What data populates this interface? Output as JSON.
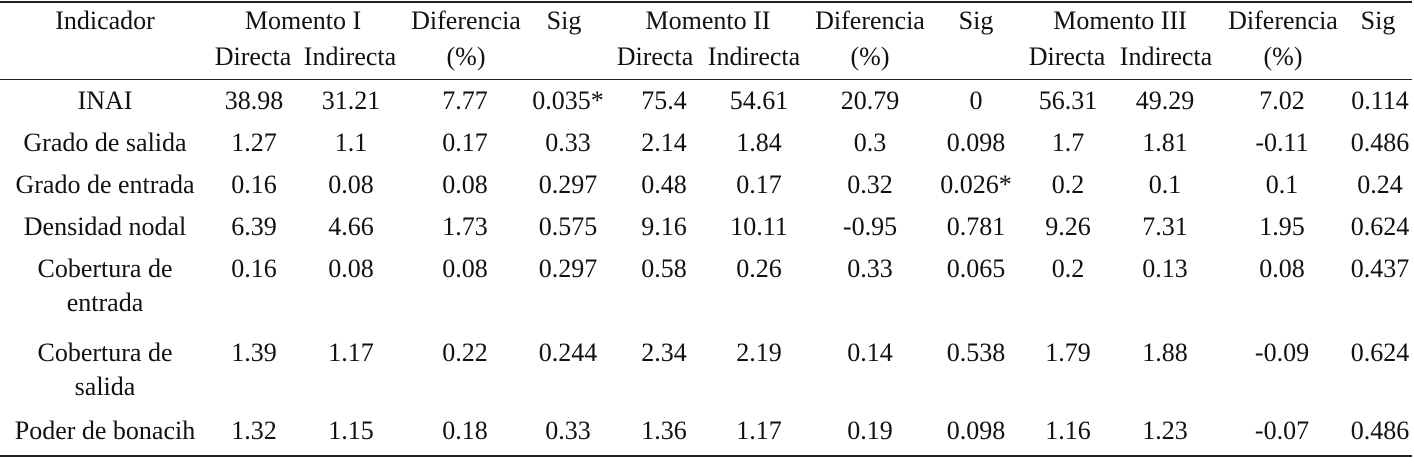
{
  "header": {
    "indicador": "Indicador",
    "groups": [
      {
        "momento": "Momento I",
        "directa": "Directa",
        "indirecta": "Indirecta",
        "diferencia": "Diferencia",
        "pct": "(%)",
        "sig": "Sig"
      },
      {
        "momento": "Momento II",
        "directa": "Directa",
        "indirecta": "Indirecta",
        "diferencia": "Diferencia",
        "pct": "(%)",
        "sig": "Sig"
      },
      {
        "momento": "Momento III",
        "directa": "Directa",
        "indirecta": "Indirecta",
        "diferencia": "Diferencia",
        "pct": "(%)",
        "sig": "Sig"
      }
    ]
  },
  "rows": [
    {
      "label": "INAI",
      "values": [
        "38.98",
        "31.21",
        "7.77",
        "0.035*",
        "75.4",
        "54.61",
        "20.79",
        "0",
        "56.31",
        "49.29",
        "7.02",
        "0.114"
      ]
    },
    {
      "label": "Grado de salida",
      "values": [
        "1.27",
        "1.1",
        "0.17",
        "0.33",
        "2.14",
        "1.84",
        "0.3",
        "0.098",
        "1.7",
        "1.81",
        "-0.11",
        "0.486"
      ]
    },
    {
      "label": "Grado de entrada",
      "values": [
        "0.16",
        "0.08",
        "0.08",
        "0.297",
        "0.48",
        "0.17",
        "0.32",
        "0.026*",
        "0.2",
        "0.1",
        "0.1",
        "0.24"
      ]
    },
    {
      "label": "Densidad nodal",
      "values": [
        "6.39",
        "4.66",
        "1.73",
        "0.575",
        "9.16",
        "10.11",
        "-0.95",
        "0.781",
        "9.26",
        "7.31",
        "1.95",
        "0.624"
      ]
    },
    {
      "label": "Cobertura de entrada",
      "values": [
        "0.16",
        "0.08",
        "0.08",
        "0.297",
        "0.58",
        "0.26",
        "0.33",
        "0.065",
        "0.2",
        "0.13",
        "0.08",
        "0.437"
      ]
    },
    {
      "label": "Cobertura de salida",
      "values": [
        "1.39",
        "1.17",
        "0.22",
        "0.244",
        "2.34",
        "2.19",
        "0.14",
        "0.538",
        "1.79",
        "1.88",
        "-0.09",
        "0.624"
      ]
    },
    {
      "label": "Poder de bonacih",
      "values": [
        "1.32",
        "1.15",
        "0.18",
        "0.33",
        "1.36",
        "1.17",
        "0.19",
        "0.098",
        "1.16",
        "1.23",
        "-0.07",
        "0.486"
      ]
    }
  ]
}
